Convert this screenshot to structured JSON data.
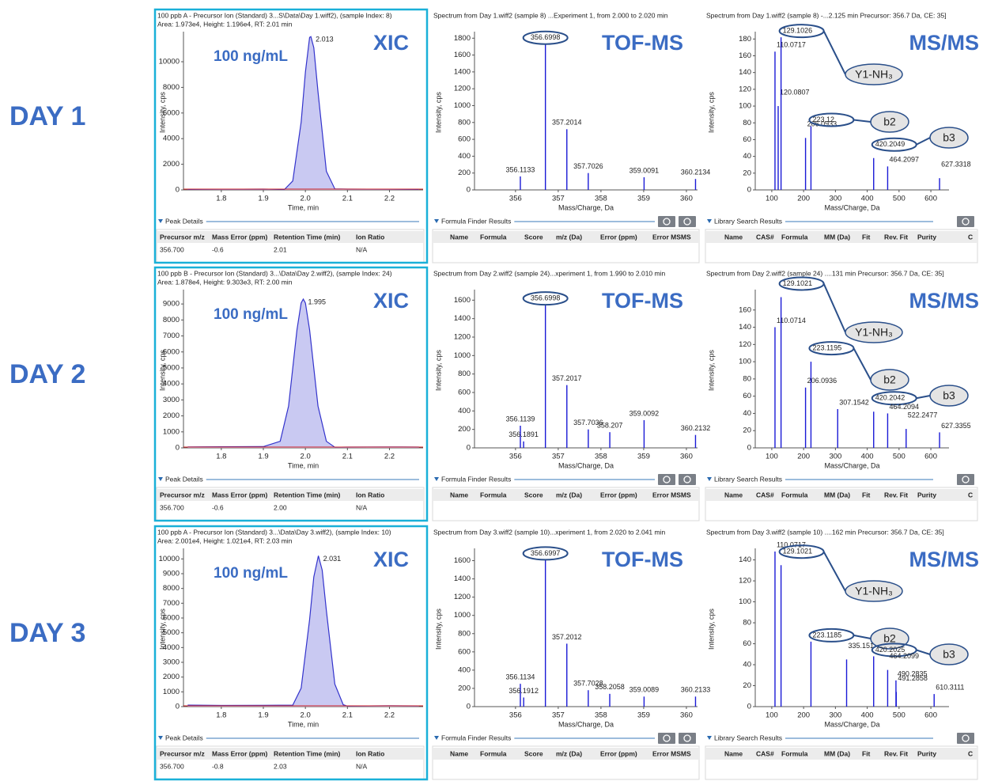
{
  "days": [
    {
      "label": "DAY 1",
      "peak_details_row": [
        "356.700",
        "-0.6",
        "2.01",
        "N/A"
      ]
    },
    {
      "label": "DAY 2",
      "peak_details_row": [
        "356.700",
        "-0.6",
        "2.00",
        "N/A"
      ]
    },
    {
      "label": "DAY 3",
      "peak_details_row": [
        "356.700",
        "-0.8",
        "2.03",
        "N/A"
      ]
    }
  ],
  "tables": {
    "peak_details": {
      "title": "Peak Details",
      "columns": [
        "Precursor m/z",
        "Mass Error (ppm)",
        "Retention Time (min)",
        "Ion Ratio"
      ]
    },
    "formula_finder": {
      "title": "Formula Finder Results",
      "columns": [
        "Name",
        "Formula",
        "Score",
        "m/z (Da)",
        "Error (ppm)",
        "Error MSMS"
      ]
    },
    "library_search": {
      "title": "Library Search Results",
      "columns": [
        "Name",
        "CAS#",
        "Formula",
        "MM (Da)",
        "Fit",
        "Rev. Fit",
        "Purity",
        "C"
      ]
    }
  },
  "chart_data": [
    {
      "type": "line",
      "title": "100 ppb A - Precursor Ion (Standard) 3...S\\Data\\Day 1.wiff2), (sample Index: 8)",
      "subtitle": "Area: 1.973e4, Height: 1.196e4, RT: 2.01 min",
      "label": "XIC",
      "annotations": [
        "100 ng/mL"
      ],
      "x_label": "Time, min",
      "y_label": "Intensity, cps",
      "color": "#3333cc",
      "fill_color": "#c9c9f2",
      "x": [
        1.72,
        1.8,
        1.9,
        1.95,
        1.97,
        1.99,
        2.0,
        2.01,
        2.013,
        2.02,
        2.03,
        2.05,
        2.07,
        2.1,
        2.2,
        2.27
      ],
      "values": [
        40,
        50,
        60,
        30,
        700,
        5290,
        9200,
        11900,
        11960,
        11100,
        7660,
        1450,
        80,
        60,
        50,
        40
      ],
      "xlim": [
        1.71,
        2.28
      ],
      "xticks": [
        1.8,
        1.9,
        {
          "value": 2,
          "label": "2.0"
        },
        2.1,
        2.2
      ],
      "ylim": [
        0,
        12100
      ],
      "yticks": [
        0,
        2000,
        4000,
        6000,
        8000,
        10000
      ]
    },
    {
      "type": "stem",
      "title": "Spectrum from Day 1.wiff2 (sample 8) ...Experiment 1, from 2.000 to 2.020 min",
      "label": "TOF-MS",
      "x_label": "Mass/Charge, Da",
      "y_label": "Intensity, cps",
      "color": "#1a1ad6",
      "x": [
        356.1133,
        356.6998,
        357.2014,
        357.7026,
        359.0091,
        360.2134
      ],
      "values": [
        160,
        1730,
        720,
        200,
        150,
        130
      ],
      "xlim": [
        355.04,
        360.26
      ],
      "xticks": [
        356,
        357,
        358,
        359,
        360
      ],
      "ylim": [
        0,
        1840
      ],
      "yticks": [
        0,
        200,
        400,
        600,
        800,
        1000,
        1200,
        1400,
        1600,
        1800
      ]
    },
    {
      "type": "stem",
      "title": "Spectrum from Day 1.wiff2 (sample 8) -...2.125 min Precursor: 356.7 Da, CE: 35]",
      "label": "MS/MS",
      "annotations": [
        "Y1-NH₃",
        "b2",
        "b3"
      ],
      "x_label": "Mass/Charge, Da",
      "y_label": "Intensity, cps",
      "color": "#1a1ad6",
      "x": [
        110.0717,
        120.0807,
        129.1026,
        206.0933,
        223.12,
        420.2049,
        464.2097,
        627.3318
      ],
      "values": [
        165,
        100,
        182,
        62,
        76,
        38,
        28,
        14
      ],
      "xlim": [
        48,
        657
      ],
      "xticks": [
        100,
        200,
        300,
        400,
        500,
        600
      ],
      "ylim": [
        0,
        185
      ],
      "yticks": [
        0,
        20,
        40,
        60,
        80,
        100,
        120,
        140,
        160,
        180
      ]
    },
    {
      "type": "line",
      "title": "100 ppb B - Precursor Ion (Standard) 3...\\Data\\Day 2.wiff2), (sample Index: 24)",
      "subtitle": "Area: 1.878e4, Height: 9.303e3, RT: 2.00 min",
      "label": "XIC",
      "annotations": [
        "100 ng/mL"
      ],
      "x_label": "Time, min",
      "y_label": "Intensity, cps",
      "color": "#3333cc",
      "fill_color": "#c9c9f2",
      "x": [
        1.72,
        1.8,
        1.9,
        1.94,
        1.96,
        1.98,
        1.99,
        1.995,
        2.0,
        2.01,
        2.03,
        2.05,
        2.07,
        2.1,
        2.2,
        2.27
      ],
      "values": [
        60,
        70,
        80,
        410,
        2620,
        7380,
        9060,
        9303,
        9060,
        7380,
        2620,
        410,
        40,
        50,
        60,
        50
      ],
      "xlim": [
        1.71,
        2.28
      ],
      "xticks": [
        1.8,
        1.9,
        {
          "value": 2,
          "label": "2.0"
        },
        2.1,
        2.2
      ],
      "ylim": [
        0,
        9700
      ],
      "yticks": [
        0,
        1000,
        2000,
        3000,
        4000,
        5000,
        6000,
        7000,
        8000,
        9000
      ]
    },
    {
      "type": "stem",
      "title": "Spectrum from Day 2.wiff2 (sample 24)...xperiment 1, from 1.990 to 2.010 min",
      "label": "TOF-MS",
      "x_label": "Mass/Charge, Da",
      "y_label": "Intensity, cps",
      "color": "#1a1ad6",
      "x": [
        356.1139,
        356.1891,
        356.6998,
        357.2017,
        357.7036,
        358.207,
        359.0092,
        360.2132
      ],
      "values": [
        240,
        70,
        1550,
        680,
        200,
        170,
        300,
        140
      ],
      "xlim": [
        355.04,
        360.26
      ],
      "xticks": [
        356,
        357,
        358,
        359,
        360
      ],
      "ylim": [
        0,
        1680
      ],
      "yticks": [
        0,
        200,
        400,
        600,
        800,
        1000,
        1200,
        1400,
        1600
      ]
    },
    {
      "type": "stem",
      "title": "Spectrum from Day 2.wiff2 (sample 24) ....131 min Precursor: 356.7 Da, CE: 35]",
      "label": "MS/MS",
      "annotations": [
        "Y1-NH₃",
        "b2",
        "b3"
      ],
      "x_label": "Mass/Charge, Da",
      "y_label": "Intensity, cps",
      "color": "#1a1ad6",
      "x": [
        110.0714,
        129.1021,
        206.0936,
        223.1195,
        307.1542,
        420.2042,
        464.2094,
        522.2477,
        627.3355
      ],
      "values": [
        140,
        175,
        70,
        100,
        45,
        42,
        40,
        22,
        18
      ],
      "xlim": [
        48,
        657
      ],
      "xticks": [
        100,
        200,
        300,
        400,
        500,
        600
      ],
      "ylim": [
        0,
        180
      ],
      "yticks": [
        0,
        20,
        40,
        60,
        80,
        100,
        120,
        140,
        160
      ]
    },
    {
      "type": "line",
      "title": "100 ppb A - Precursor Ion (Standard) 3...\\Data\\Day 3.wiff2), (sample Index: 10)",
      "subtitle": "Area: 2.001e4, Height: 1.021e4, RT: 2.03 min",
      "label": "XIC",
      "annotations": [
        "100 ng/mL"
      ],
      "x_label": "Time, min",
      "y_label": "Intensity, cps",
      "color": "#3333cc",
      "fill_color": "#c9c9f2",
      "x": [
        1.72,
        1.8,
        1.9,
        1.97,
        1.99,
        2.01,
        2.02,
        2.031,
        2.04,
        2.05,
        2.07,
        2.09,
        2.1,
        2.2,
        2.27
      ],
      "values": [
        100,
        80,
        90,
        100,
        1250,
        5900,
        8780,
        10210,
        9240,
        6500,
        1520,
        130,
        40,
        60,
        50
      ],
      "xlim": [
        1.71,
        2.28
      ],
      "xticks": [
        1.8,
        1.9,
        {
          "value": 2,
          "label": "2.0"
        },
        2.1,
        2.2
      ],
      "ylim": [
        0,
        10500
      ],
      "yticks": [
        0,
        1000,
        2000,
        3000,
        4000,
        5000,
        6000,
        7000,
        8000,
        9000,
        10000
      ]
    },
    {
      "type": "stem",
      "title": "Spectrum from Day 3.wiff2 (sample 10)...xperiment 1, from 2.020 to 2.041 min",
      "label": "TOF-MS",
      "x_label": "Mass/Charge, Da",
      "y_label": "Intensity, cps",
      "color": "#1a1ad6",
      "x": [
        356.1134,
        356.1912,
        356.6997,
        357.2012,
        357.7028,
        358.2058,
        359.0089,
        360.2133
      ],
      "values": [
        250,
        100,
        1610,
        690,
        180,
        140,
        110,
        110
      ],
      "xlim": [
        355.04,
        360.26
      ],
      "xticks": [
        356,
        357,
        358,
        359,
        360
      ],
      "ylim": [
        0,
        1700
      ],
      "yticks": [
        0,
        200,
        400,
        600,
        800,
        1000,
        1200,
        1400,
        1600
      ]
    },
    {
      "type": "stem",
      "title": "Spectrum from Day 3.wiff2 (sample 10) ....162 min Precursor: 356.7 Da, CE: 35]",
      "label": "MS/MS",
      "annotations": [
        "Y1-NH₃",
        "b2",
        "b3"
      ],
      "x_label": "Mass/Charge, Da",
      "y_label": "Intensity, cps",
      "color": "#1a1ad6",
      "x": [
        110.0717,
        129.1021,
        223.1185,
        335.151,
        420.2025,
        464.2099,
        490.2835,
        491.2858,
        610.3111
      ],
      "values": [
        148,
        135,
        62,
        45,
        48,
        35,
        25,
        14,
        12
      ],
      "xlim": [
        48,
        657
      ],
      "xticks": [
        100,
        200,
        300,
        400,
        500,
        600
      ],
      "ylim": [
        0,
        148
      ],
      "yticks": [
        0,
        20,
        40,
        60,
        80,
        100,
        120,
        140
      ]
    }
  ]
}
